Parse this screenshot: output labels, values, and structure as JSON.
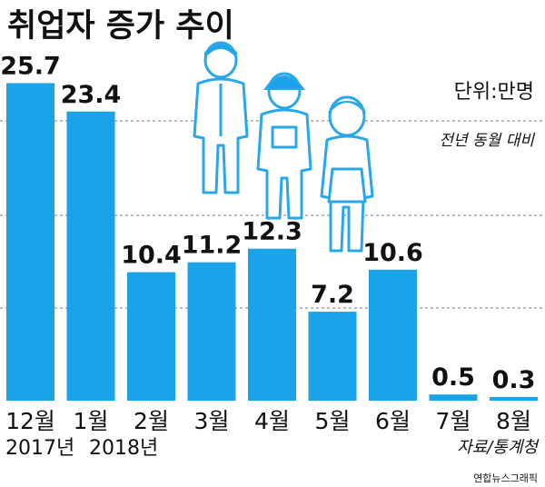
{
  "chart_data": {
    "type": "bar",
    "title": "취업자 증가 추이",
    "unit_label": "단위:만명",
    "note": "전년 동월 대비",
    "categories": [
      "12월",
      "1월",
      "2월",
      "3월",
      "4월",
      "5월",
      "6월",
      "7월",
      "8월"
    ],
    "values": [
      25.7,
      23.4,
      10.4,
      11.2,
      12.3,
      7.2,
      10.6,
      0.5,
      0.3
    ],
    "value_labels": [
      "25.7",
      "23.4",
      "10.4",
      "11.2",
      "12.3",
      "7.2",
      "10.6",
      "0.5",
      "0.3"
    ],
    "year_labels": [
      "2017년",
      "2018년"
    ],
    "source": "자료/통계청",
    "credit": "연합뉴스그래픽",
    "grid": true,
    "bar_color": "#1aa3e8",
    "illustration": "three-workers-icon"
  }
}
